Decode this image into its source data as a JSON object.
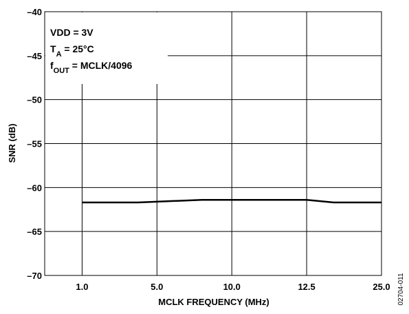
{
  "chart_data": {
    "type": "line",
    "title": "",
    "xlabel": "MCLK FREQUENCY (MHz)",
    "ylabel": "SNR (dB)",
    "x_tick_labels": [
      "1.0",
      "5.0",
      "10.0",
      "12.5",
      "25.0"
    ],
    "y_ticks": [
      -40,
      -45,
      -50,
      -55,
      -60,
      -65,
      -70
    ],
    "y_tick_labels": [
      "–40",
      "–45",
      "–50",
      "–55",
      "–60",
      "–65",
      "–70"
    ],
    "ylim": [
      -70,
      -40
    ],
    "x_axis_scale": "categorical, evenly spaced ticks",
    "grid": true,
    "annotations": [
      {
        "id": "vdd",
        "parts": [
          {
            "text": "VDD = 3V"
          }
        ]
      },
      {
        "id": "ta",
        "parts": [
          {
            "text": "T"
          },
          {
            "text": "A",
            "sub": true
          },
          {
            "text": " = 25°C"
          }
        ]
      },
      {
        "id": "fout",
        "parts": [
          {
            "text": "f"
          },
          {
            "text": "OUT",
            "sub": true
          },
          {
            "text": " = MCLK/4096"
          }
        ]
      }
    ],
    "series": [
      {
        "x": [
          "1.0",
          "4.0",
          "8.0",
          "10.0",
          "12.5",
          "17.0",
          "25.0"
        ],
        "values": [
          -61.7,
          -61.7,
          -61.4,
          -61.4,
          -61.4,
          -61.7,
          -61.7
        ]
      }
    ],
    "figure_id": "02704-011"
  }
}
